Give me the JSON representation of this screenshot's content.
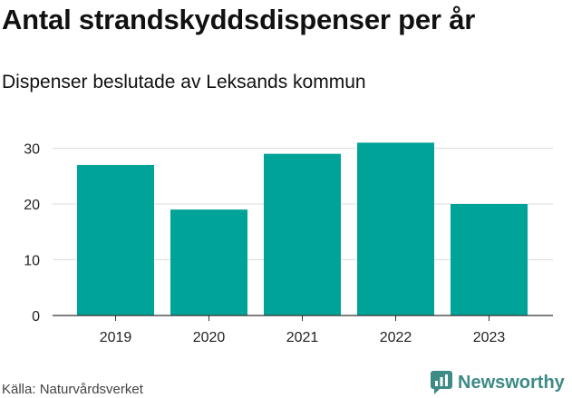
{
  "header": {
    "title": "Antal strandskyddsdispenser per år",
    "subtitle": "Dispenser beslutade av Leksands kommun"
  },
  "footer": {
    "source": "Källa: Naturvårdsverket",
    "brand": "Newsworthy"
  },
  "colors": {
    "bar": "#00a398",
    "grid": "#dddddd",
    "axis": "#333333",
    "brand": "#3d8a86"
  },
  "chart_data": {
    "type": "bar",
    "title": "Antal strandskyddsdispenser per år",
    "subtitle": "Dispenser beslutade av Leksands kommun",
    "xlabel": "",
    "ylabel": "",
    "categories": [
      "2019",
      "2020",
      "2021",
      "2022",
      "2023"
    ],
    "values": [
      27,
      19,
      29,
      31,
      20
    ],
    "ylim": [
      0,
      35
    ],
    "yticks": [
      0,
      10,
      20,
      30
    ],
    "grid": true,
    "source": "Källa: Naturvårdsverket"
  }
}
